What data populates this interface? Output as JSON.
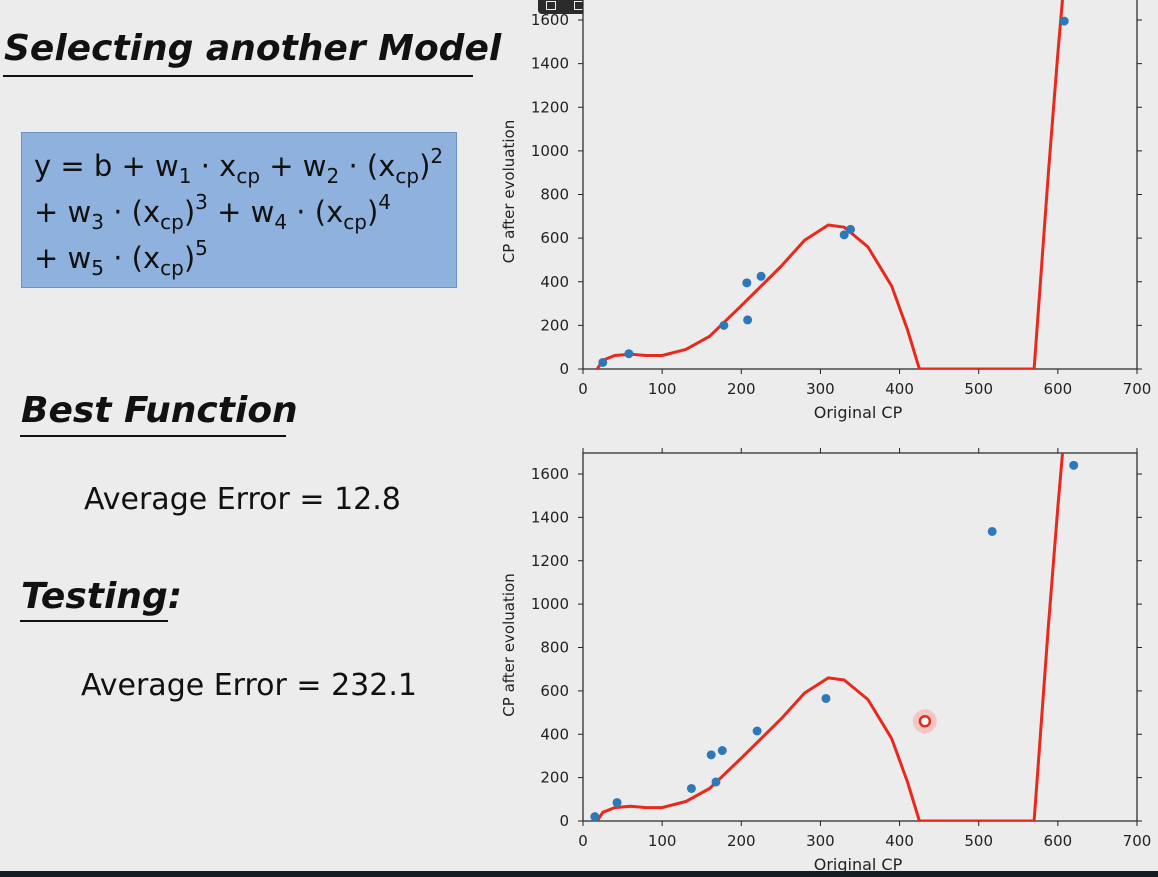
{
  "slide": {
    "title": "Selecting another Model",
    "formula": {
      "line1": [
        {
          "t": "y = b + w"
        },
        {
          "sub": "1"
        },
        {
          "t": " · x"
        },
        {
          "sub": "cp"
        },
        {
          "t": " + w"
        },
        {
          "sub": "2"
        },
        {
          "t": " · (x"
        },
        {
          "sub": "cp"
        },
        {
          "t": ")"
        },
        {
          "sup": "2"
        }
      ],
      "line2": [
        {
          "t": "+ w"
        },
        {
          "sub": "3"
        },
        {
          "t": " · (x"
        },
        {
          "sub": "cp"
        },
        {
          "t": ")"
        },
        {
          "sup": "3"
        },
        {
          "t": " + w"
        },
        {
          "sub": "4"
        },
        {
          "t": " · (x"
        },
        {
          "sub": "cp"
        },
        {
          "t": ")"
        },
        {
          "sup": "4"
        }
      ],
      "line3": [
        {
          "t": "+ w"
        },
        {
          "sub": "5"
        },
        {
          "t": " · (x"
        },
        {
          "sub": "cp"
        },
        {
          "t": ")"
        },
        {
          "sup": "5"
        }
      ]
    },
    "best_function_heading": "Best Function",
    "train_error": "Average Error = 12.8",
    "testing_heading": "Testing:",
    "test_error": "Average Error = 232.1"
  },
  "colors": {
    "point": "#2f78b8",
    "curve": "#e8291c",
    "formula_box": "#8fb1de",
    "highlight": "#e8291c"
  },
  "chart_data": [
    {
      "type": "scatter",
      "title": "",
      "xlabel": "Original CP",
      "ylabel": "CP after evoluation",
      "xlim": [
        0,
        700
      ],
      "ylim": [
        0,
        1700
      ],
      "xticks": [
        0,
        100,
        200,
        300,
        400,
        500,
        600,
        700
      ],
      "yticks": [
        0,
        200,
        400,
        600,
        800,
        1000,
        1200,
        1400,
        1600
      ],
      "points": [
        {
          "x": 25,
          "y": 30
        },
        {
          "x": 58,
          "y": 70
        },
        {
          "x": 178,
          "y": 200
        },
        {
          "x": 207,
          "y": 395
        },
        {
          "x": 208,
          "y": 225
        },
        {
          "x": 225,
          "y": 425
        },
        {
          "x": 330,
          "y": 615
        },
        {
          "x": 338,
          "y": 640
        },
        {
          "x": 608,
          "y": 1595
        }
      ],
      "curve": [
        [
          18,
          0
        ],
        [
          25,
          40
        ],
        [
          40,
          62
        ],
        [
          60,
          68
        ],
        [
          80,
          62
        ],
        [
          100,
          62
        ],
        [
          130,
          90
        ],
        [
          160,
          150
        ],
        [
          200,
          290
        ],
        [
          250,
          470
        ],
        [
          280,
          590
        ],
        [
          310,
          660
        ],
        [
          330,
          650
        ],
        [
          360,
          560
        ],
        [
          390,
          380
        ],
        [
          410,
          180
        ],
        [
          425,
          0
        ],
        [
          570,
          0
        ],
        [
          588,
          900
        ],
        [
          600,
          1450
        ],
        [
          606,
          1700
        ]
      ]
    },
    {
      "type": "scatter",
      "title": "",
      "xlabel": "Original CP",
      "ylabel": "CP after evoluation",
      "xlim": [
        0,
        700
      ],
      "ylim": [
        0,
        1700
      ],
      "xticks": [
        0,
        100,
        200,
        300,
        400,
        500,
        600,
        700
      ],
      "yticks": [
        0,
        200,
        400,
        600,
        800,
        1000,
        1200,
        1400,
        1600
      ],
      "points": [
        {
          "x": 15,
          "y": 20
        },
        {
          "x": 43,
          "y": 85
        },
        {
          "x": 137,
          "y": 150
        },
        {
          "x": 162,
          "y": 305
        },
        {
          "x": 168,
          "y": 180
        },
        {
          "x": 176,
          "y": 325
        },
        {
          "x": 220,
          "y": 415
        },
        {
          "x": 307,
          "y": 565
        },
        {
          "x": 517,
          "y": 1335
        },
        {
          "x": 620,
          "y": 1640
        }
      ],
      "highlight_point": {
        "x": 432,
        "y": 460
      },
      "curve": [
        [
          18,
          0
        ],
        [
          25,
          40
        ],
        [
          40,
          62
        ],
        [
          60,
          68
        ],
        [
          80,
          62
        ],
        [
          100,
          62
        ],
        [
          130,
          90
        ],
        [
          160,
          150
        ],
        [
          200,
          290
        ],
        [
          250,
          470
        ],
        [
          280,
          590
        ],
        [
          310,
          660
        ],
        [
          330,
          650
        ],
        [
          360,
          560
        ],
        [
          390,
          380
        ],
        [
          410,
          180
        ],
        [
          425,
          0
        ],
        [
          570,
          0
        ],
        [
          588,
          900
        ],
        [
          600,
          1450
        ],
        [
          606,
          1700
        ]
      ]
    }
  ]
}
